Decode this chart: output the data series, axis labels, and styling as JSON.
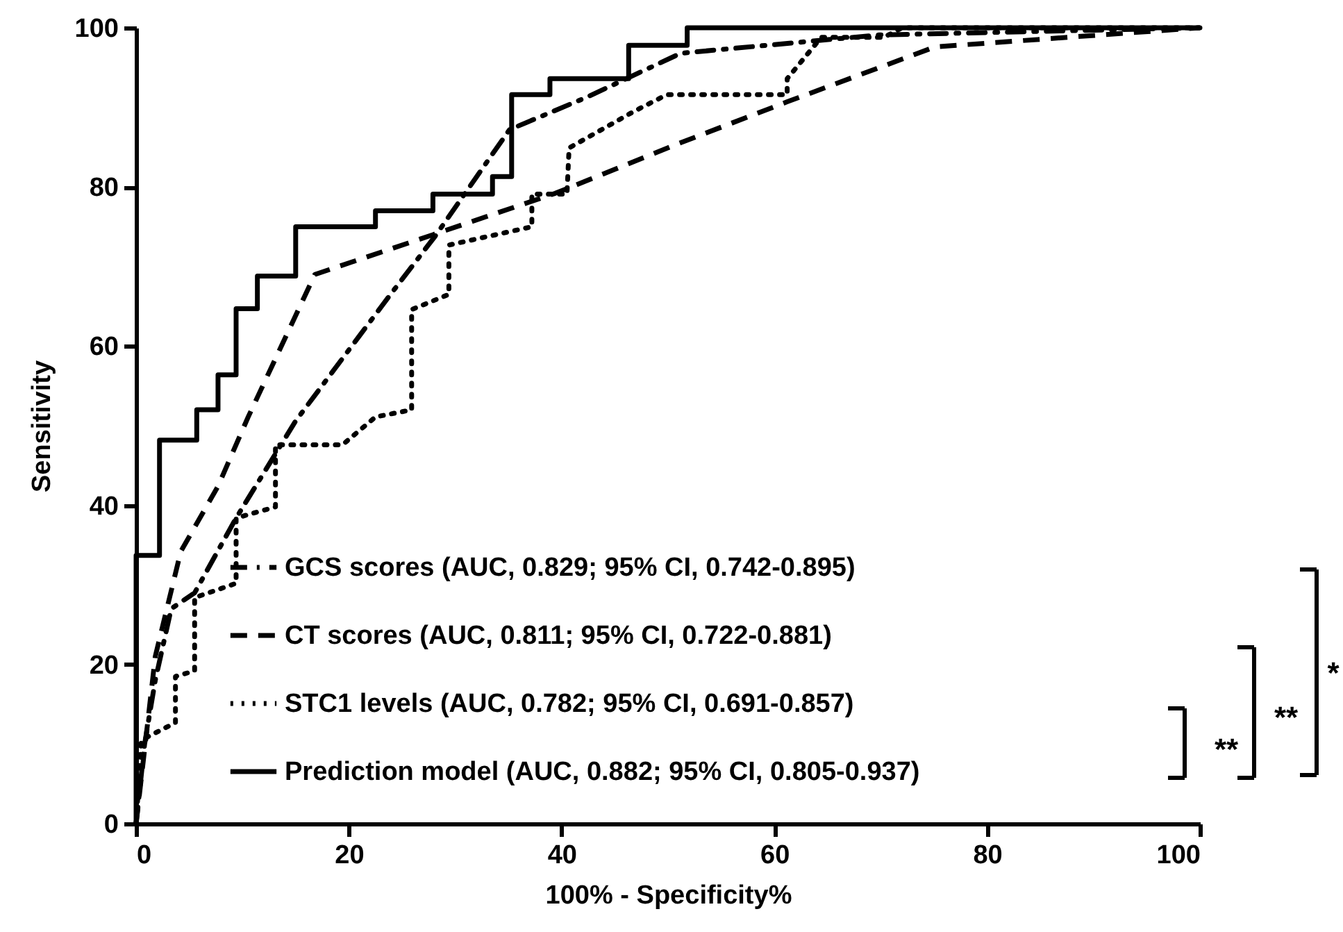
{
  "chart_data": {
    "type": "line",
    "xlabel": "100% - Specificity%",
    "ylabel": "Sensitivity",
    "xlim": [
      0,
      100
    ],
    "ylim": [
      0,
      100
    ],
    "xticks": [
      0,
      20,
      40,
      60,
      80,
      100
    ],
    "yticks": [
      0,
      20,
      40,
      60,
      80,
      100
    ],
    "grid": false,
    "legend": "bottom",
    "marker": "none",
    "series": [
      {
        "name": "GCS scores (AUC, 0.829; 95% CI, 0.742-0.895)",
        "color": "#000000",
        "line_style": "dashdot",
        "x": [
          0,
          0.8,
          1.8,
          3.3,
          5.5,
          9.4,
          15,
          23.8,
          28.1,
          35.1,
          42.4,
          51.2,
          69.8,
          100
        ],
        "values": [
          0,
          10,
          18,
          27,
          29,
          38.4,
          50.6,
          66.3,
          73.8,
          87.2,
          91.3,
          96.8,
          99.1,
          100
        ]
      },
      {
        "name": "CT scores (AUC, 0.811; 95% CI, 0.722-0.881)",
        "color": "#000000",
        "line_style": "dashed",
        "x": [
          0,
          1.8,
          4.2,
          7.7,
          10.5,
          16.8,
          27.9,
          39.4,
          50.5,
          61.2,
          75.1,
          100
        ],
        "values": [
          0,
          21,
          34.2,
          42.4,
          51,
          69,
          74,
          79.2,
          85.2,
          90.7,
          97.6,
          100
        ]
      },
      {
        "name": "STC1 levels (AUC, 0.782; 95% CI, 0.691-0.857)",
        "color": "#000000",
        "line_style": "dotted",
        "x": [
          0,
          0.5,
          3.7,
          3.7,
          5.5,
          5.5,
          9.4,
          9.4,
          13.1,
          13.1,
          19.4,
          22.5,
          25.9,
          25.9,
          29.4,
          29.4,
          37.2,
          37.2,
          40.5,
          40.7,
          46.8,
          49.9,
          61.2,
          61.2,
          64.4,
          70.3,
          72,
          100
        ],
        "values": [
          0,
          10.5,
          12.7,
          18.5,
          19.2,
          28.4,
          30.2,
          38.4,
          39.8,
          47.6,
          47.6,
          51.1,
          52,
          64.6,
          66.5,
          72.7,
          75,
          79.1,
          79.1,
          84.9,
          89.5,
          91.6,
          91.6,
          93.6,
          98.8,
          98.8,
          100,
          100
        ]
      },
      {
        "name": "Prediction model  (AUC, 0.882; 95% CI, 0.805-0.937)",
        "color": "#000000",
        "line_style": "solid",
        "type": "step",
        "x": [
          0,
          0,
          2.2,
          5.7,
          7.7,
          9.4,
          11.4,
          15,
          22.5,
          27.9,
          33.5,
          35.3,
          38.9,
          46.3,
          51.8,
          100
        ],
        "values": [
          0,
          33.7,
          48.2,
          52,
          56.4,
          64.7,
          68.8,
          75,
          77,
          79.1,
          81.3,
          91.6,
          93.6,
          97.8,
          100,
          100
        ]
      }
    ],
    "annotations": [
      "**",
      "**",
      "*"
    ]
  }
}
